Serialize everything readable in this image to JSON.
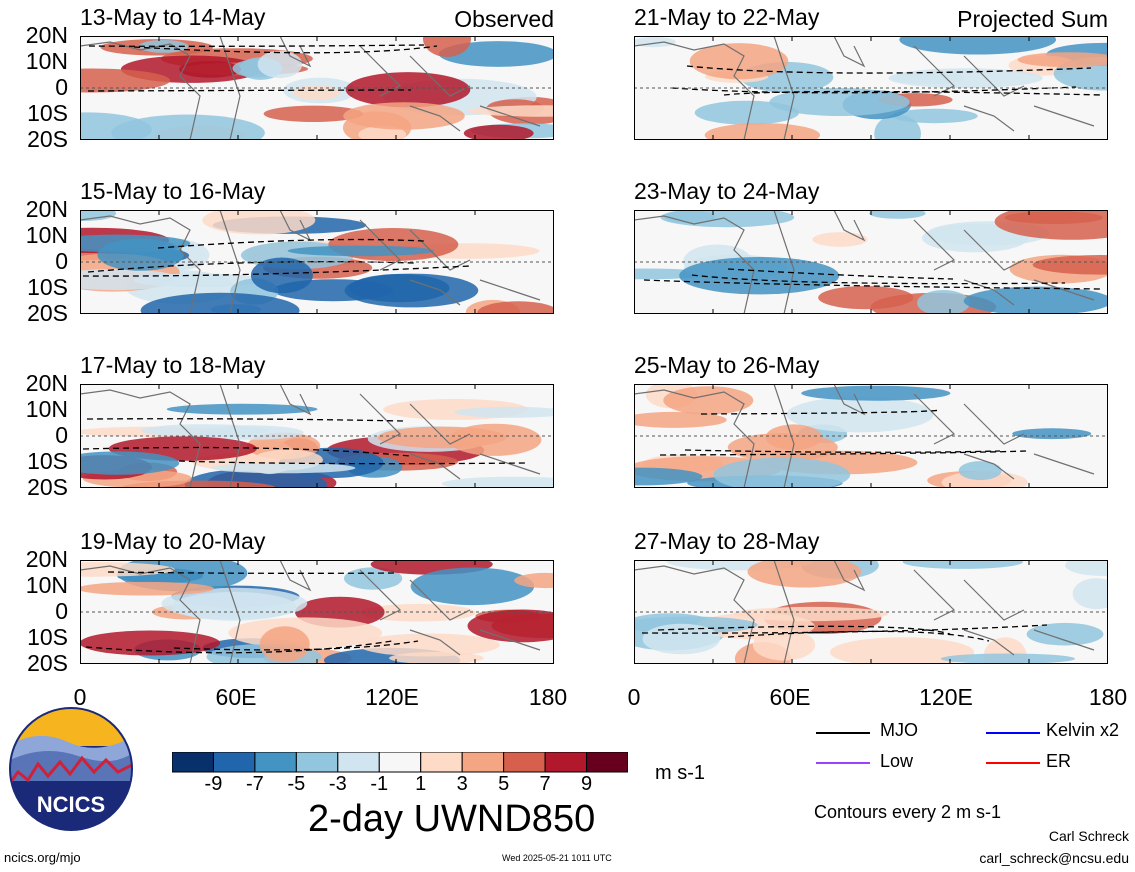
{
  "panels": [
    {
      "title": "13-May to 14-May",
      "tag": "Observed",
      "type": "observed"
    },
    {
      "title": "15-May to 16-May",
      "tag": "",
      "type": "observed"
    },
    {
      "title": "17-May to 18-May",
      "tag": "",
      "type": "observed"
    },
    {
      "title": "19-May to 20-May",
      "tag": "",
      "type": "observed"
    },
    {
      "title": "21-May to 22-May",
      "tag": "Projected Sum",
      "type": "projected"
    },
    {
      "title": "23-May to 24-May",
      "tag": "",
      "type": "projected"
    },
    {
      "title": "25-May to 26-May",
      "tag": "",
      "type": "projected"
    },
    {
      "title": "27-May to 28-May",
      "tag": "",
      "type": "projected"
    }
  ],
  "lat_labels": [
    "20N",
    "10N",
    "0",
    "10S",
    "20S"
  ],
  "lon_labels": [
    "0",
    "60E",
    "120E",
    "180"
  ],
  "colorbar": {
    "colors": [
      "#08306b",
      "#2166ac",
      "#4393c3",
      "#92c5de",
      "#d1e5f0",
      "#f7f7f7",
      "#fddbc7",
      "#f4a582",
      "#d6604d",
      "#b2182b",
      "#67001f"
    ],
    "labels": [
      "-9",
      "-7",
      "-5",
      "-3",
      "-1",
      "1",
      "3",
      "5",
      "7",
      "9"
    ],
    "units": "m s-1"
  },
  "title": "2-day UWND850",
  "legend": [
    {
      "label": "MJO",
      "color": "#000000"
    },
    {
      "label": "Kelvin x2",
      "color": "#0000ff"
    },
    {
      "label": "Low",
      "color": "#a040ff"
    },
    {
      "label": "ER",
      "color": "#ff0000"
    }
  ],
  "contours_note": "Contours every 2 m s-1",
  "logo": {
    "text": "NCICS"
  },
  "footer": {
    "url": "ncics.org/mjo",
    "timestamp": "Wed 2025-05-21 1011 UTC",
    "author": "Carl Schreck",
    "email": "carl_schreck@ncsu.edu"
  }
}
